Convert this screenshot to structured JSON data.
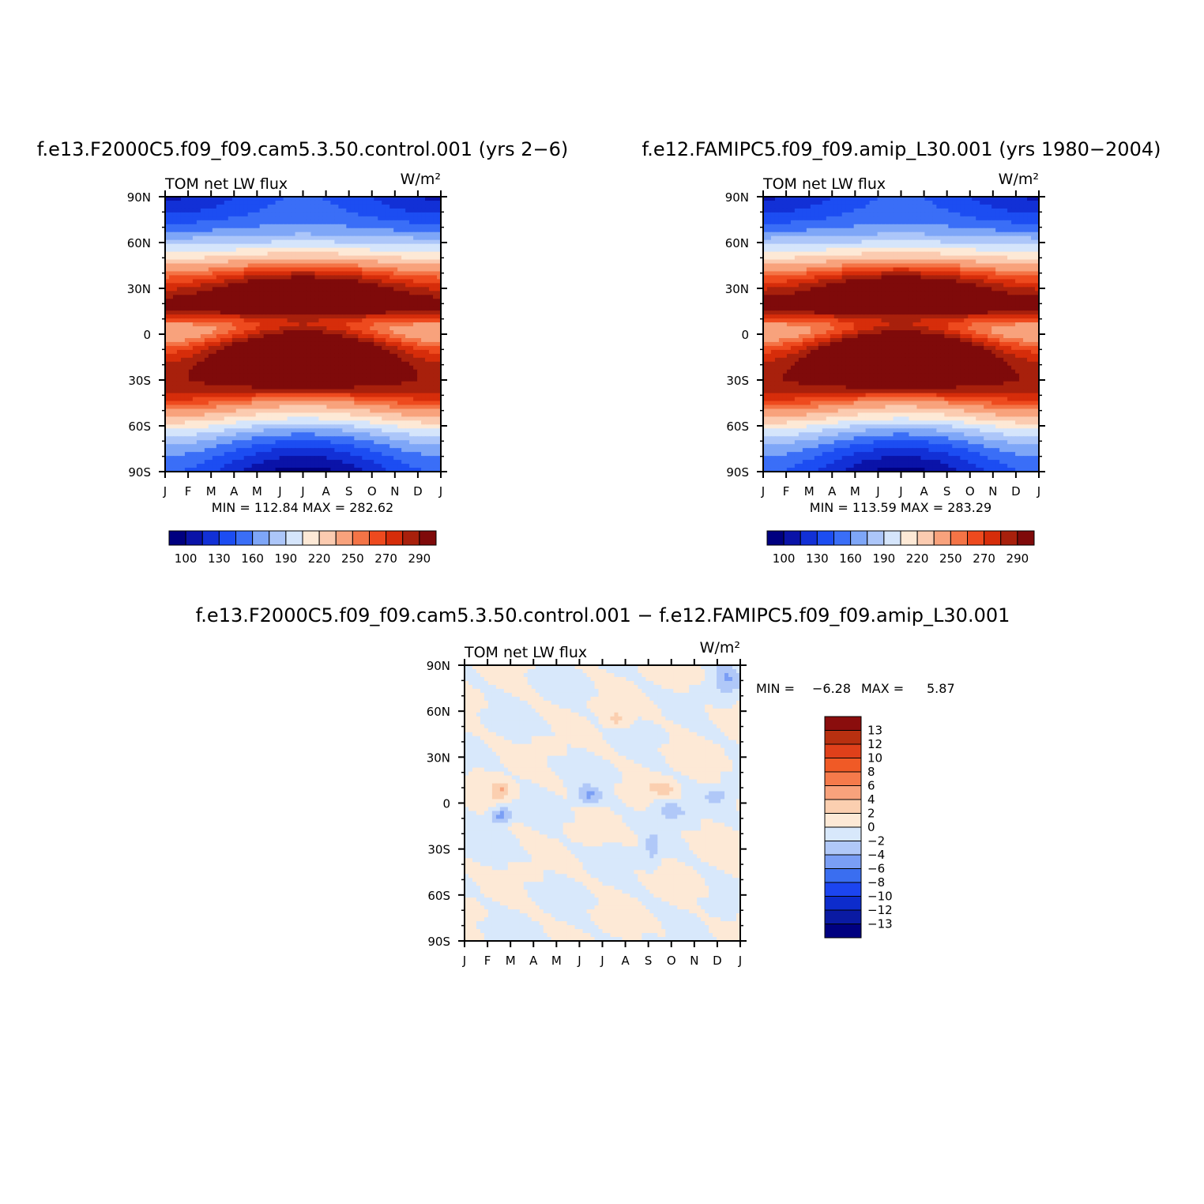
{
  "figure": {
    "panel_a_title": "f.e13.F2000C5.f09_f09.cam5.3.50.control.001 (yrs 2−6)",
    "panel_b_title": "f.e12.FAMIPC5.f09_f09.amip_L30.001 (yrs 1980−2004)",
    "panel_c_title": "f.e13.F2000C5.f09_f09.cam5.3.50.control.001 − f.e12.FAMIPC5.f09_f09.amip_L30.001",
    "variable": "TOM net LW flux",
    "units": "W/m²"
  },
  "colors": {
    "abs_palette": [
      "#000080",
      "#0a13a8",
      "#1230d6",
      "#1c4df2",
      "#3a6ef7",
      "#7ea6f7",
      "#acc6f9",
      "#d5e5fb",
      "#fde9d6",
      "#fbcbb0",
      "#f8a27c",
      "#f47446",
      "#ee4a1e",
      "#d62d0a",
      "#a8200c",
      "#7f0a0a"
    ],
    "diff_palette": [
      "#000080",
      "#0a1aa3",
      "#0d2ccc",
      "#1c45f0",
      "#3a6ef0",
      "#7a9ef5",
      "#b0c8f8",
      "#d8e8fb",
      "#fde9d6",
      "#fbcfb0",
      "#f8a27c",
      "#f57a4b",
      "#f05a26",
      "#e0401a",
      "#b83010",
      "#8a0d0d"
    ]
  },
  "chart_data": [
    {
      "type": "heatmap",
      "title": "f.e13.F2000C5.f09_f09.cam5.3.50.control.001 (yrs 2−6)",
      "subtitle": "TOM net LW flux",
      "units": "W/m²",
      "x": [
        "J",
        "F",
        "M",
        "A",
        "M",
        "J",
        "J",
        "A",
        "S",
        "O",
        "N",
        "D",
        "J"
      ],
      "y_ticks": [
        "90N",
        "60N",
        "30N",
        "0",
        "30S",
        "60S",
        "90S"
      ],
      "stats": "MIN = 112.84 MAX = 282.62",
      "min": 112.84,
      "max": 282.62,
      "levels": [
        "100",
        "130",
        "160",
        "190",
        "220",
        "250",
        "270",
        "290"
      ]
    },
    {
      "type": "heatmap",
      "title": "f.e12.FAMIPC5.f09_f09.amip_L30.001 (yrs 1980−2004)",
      "subtitle": "TOM net LW flux",
      "units": "W/m²",
      "x": [
        "J",
        "F",
        "M",
        "A",
        "M",
        "J",
        "J",
        "A",
        "S",
        "O",
        "N",
        "D",
        "J"
      ],
      "y_ticks": [
        "90N",
        "60N",
        "30N",
        "0",
        "30S",
        "60S",
        "90S"
      ],
      "stats": "MIN = 113.59 MAX = 283.29",
      "min": 113.59,
      "max": 283.29,
      "levels": [
        "100",
        "130",
        "160",
        "190",
        "220",
        "250",
        "270",
        "290"
      ]
    },
    {
      "type": "heatmap",
      "title": "f.e13.F2000C5.f09_f09.cam5.3.50.control.001 − f.e12.FAMIPC5.f09_f09.amip_L30.001",
      "subtitle": "TOM net LW flux",
      "units": "W/m²",
      "x": [
        "J",
        "F",
        "M",
        "A",
        "M",
        "J",
        "J",
        "A",
        "S",
        "O",
        "N",
        "D",
        "J"
      ],
      "y_ticks": [
        "90N",
        "60N",
        "30N",
        "0",
        "30S",
        "60S",
        "90S"
      ],
      "stats_label_min": "MIN =",
      "stats_min": "−6.28",
      "stats_label_max": "MAX =",
      "stats_max": "5.87",
      "min": -6.28,
      "max": 5.87,
      "levels": [
        "13",
        "12",
        "10",
        "8",
        "6",
        "4",
        "2",
        "0",
        "−2",
        "−4",
        "−6",
        "−8",
        "−10",
        "−12",
        "−13"
      ]
    }
  ]
}
